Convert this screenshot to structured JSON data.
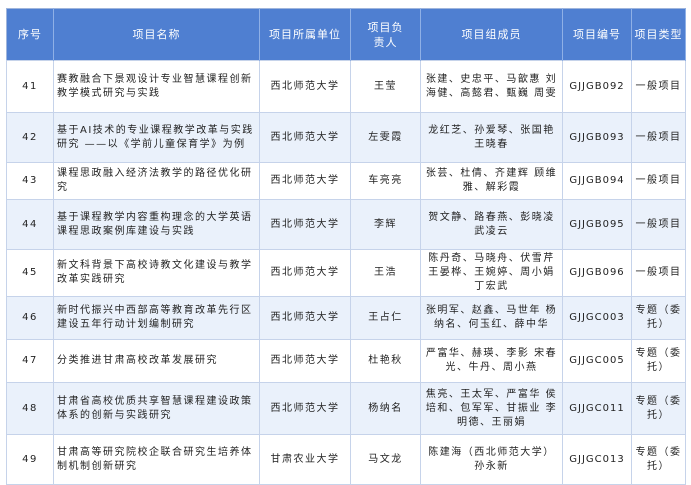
{
  "headers": [
    "序号",
    "项目名称",
    "项目所属单位",
    "项目负责人",
    "项目组成员",
    "项目编号",
    "项目类型"
  ],
  "rows": [
    {
      "no": "41",
      "name": "赛教融合下景观设计专业智慧课程创新教学模式研究与实践",
      "unit": "西北师范大学",
      "leader": "王莹",
      "members": "张建、史忠平、马歆惠 刘海健、高懿君、甄巍 周雯",
      "code": "GJJGB092",
      "type": "一般项目"
    },
    {
      "no": "42",
      "name": "基于AI技术的专业课程教学改革与实践研究 ——以《学前儿童保育学》为例",
      "unit": "西北师范大学",
      "leader": "左雯霞",
      "members": "龙红芝、孙爱琴、张国艳 王晓春",
      "code": "GJJGB093",
      "type": "一般项目"
    },
    {
      "no": "43",
      "name": "课程思政融入经济法教学的路径优化研究",
      "unit": "西北师范大学",
      "leader": "车亮亮",
      "members": "张芸、杜倩、齐建辉 顾维雅、解彩霞",
      "code": "GJJGB094",
      "type": "一般项目"
    },
    {
      "no": "44",
      "name": "基于课程教学内容重构理念的大学英语课程思政案例库建设与实践",
      "unit": "西北师范大学",
      "leader": "李辉",
      "members": "贺文静、路春燕、彭晓凌 武凌云",
      "code": "GJJGB095",
      "type": "一般项目"
    },
    {
      "no": "45",
      "name": "新文科背景下高校诗教文化建设与教学改革实践研究",
      "unit": "西北师范大学",
      "leader": "王浩",
      "members": "陈丹奇、马晓舟、伏雪芹 王晏桦、王婉婷、周小娟 丁宏武",
      "code": "GJJGB096",
      "type": "一般项目"
    },
    {
      "no": "46",
      "name": "新时代振兴中西部高等教育改革先行区建设五年行动计划编制研究",
      "unit": "西北师范大学",
      "leader": "王占仁",
      "members": "张明军、赵鑫、马世年 杨纳名、何玉红、薛中华",
      "code": "GJJGC003",
      "type": "专题（委托）"
    },
    {
      "no": "47",
      "name": "分类推进甘肃高校改革发展研究",
      "unit": "西北师范大学",
      "leader": "杜艳秋",
      "members": "严富华、赫瑛、李影 宋春光、牛丹、周小燕",
      "code": "GJJGC005",
      "type": "专题（委托）"
    },
    {
      "no": "48",
      "name": "甘肃省高校优质共享智慧课程建设政策体系的创新与实践研究",
      "unit": "西北师范大学",
      "leader": "杨纳名",
      "members": "焦亮、王太军、严富华 侯培和、包军军、甘振业 李明德、王丽娟",
      "code": "GJJGC011",
      "type": "专题（委托）"
    },
    {
      "no": "49",
      "name": "甘肃高等研究院校企联合研究生培养体制机制创新研究",
      "unit": "甘肃农业大学",
      "leader": "马文龙",
      "members": "陈建海（西北师范大学） 孙永新",
      "code": "GJJGC013",
      "type": "专题（委托）"
    }
  ]
}
